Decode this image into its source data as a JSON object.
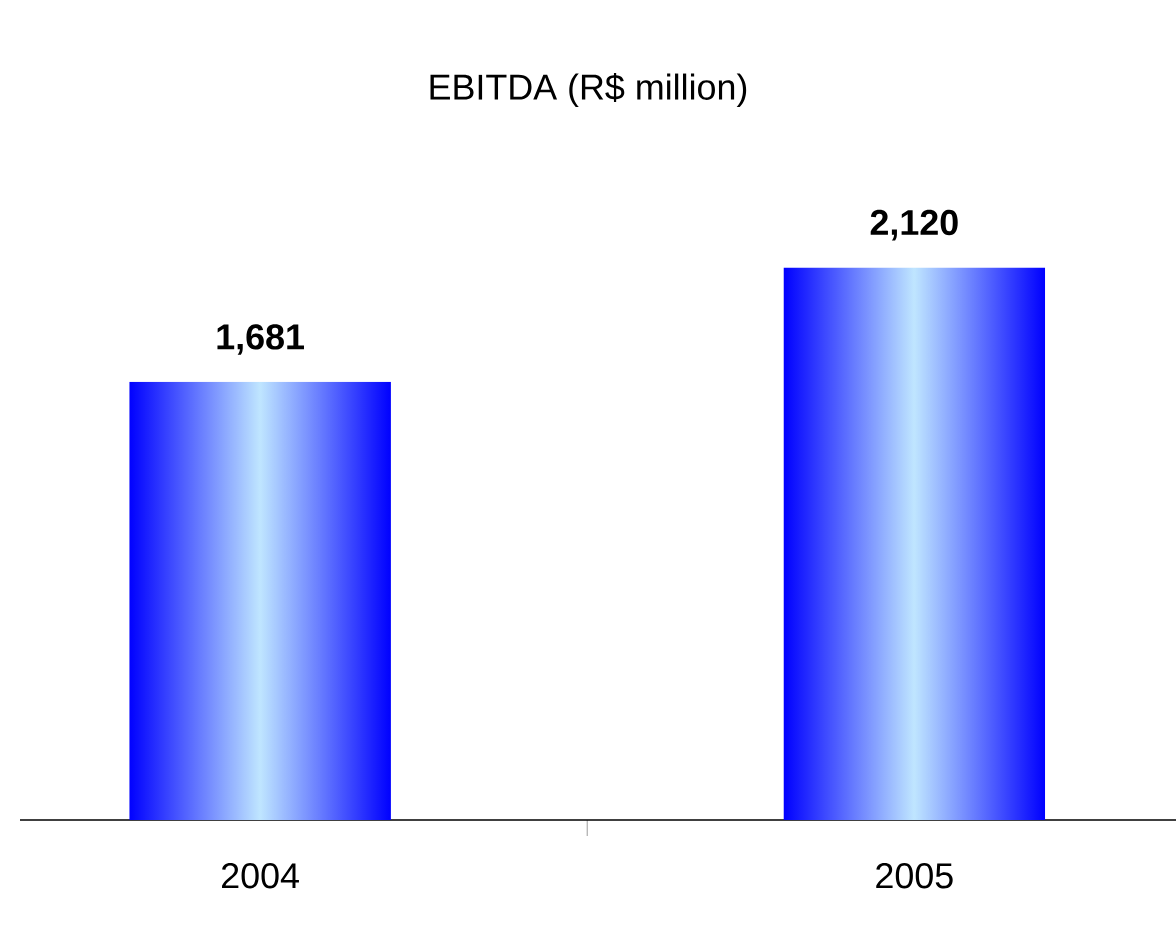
{
  "chart_data": {
    "type": "bar",
    "title": "EBITDA (R$ million)",
    "categories": [
      "2004",
      "2005"
    ],
    "values": [
      1681,
      2120
    ],
    "value_labels": [
      "1,681",
      "2,120"
    ],
    "color": "#0000ff"
  }
}
